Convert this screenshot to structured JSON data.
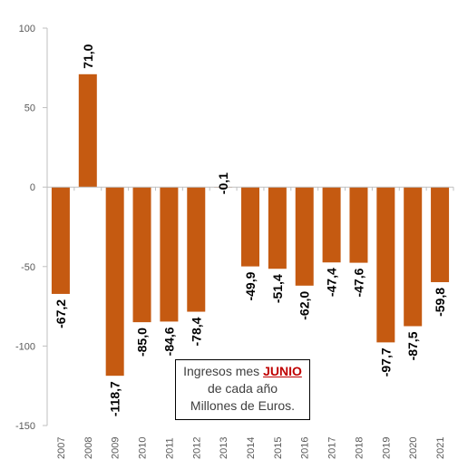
{
  "chart_data": {
    "type": "bar",
    "categories": [
      "2007",
      "2008",
      "2009",
      "2010",
      "2011",
      "2012",
      "2013",
      "2014",
      "2015",
      "2016",
      "2017",
      "2018",
      "2019",
      "2020",
      "2021"
    ],
    "values": [
      -67.2,
      71.0,
      -118.7,
      -85.0,
      -84.6,
      -78.4,
      -0.1,
      -49.9,
      -51.4,
      -62.0,
      -47.4,
      -47.6,
      -97.7,
      -87.5,
      -59.8
    ],
    "data_labels": [
      "-67,2",
      "71,0",
      "-118,7",
      "-85,0",
      "-84,6",
      "-78,4",
      "-0,1",
      "-49,9",
      "-51,4",
      "-62,0",
      "-47,4",
      "-47,6",
      "-97,7",
      "-87,5",
      "-59,8"
    ],
    "ylim": [
      -150,
      100
    ],
    "y_ticks": [
      100,
      50,
      0,
      -50,
      -100,
      -150
    ],
    "grid": false,
    "bar_color": "#c55a11",
    "title": "",
    "xlabel": "",
    "ylabel": ""
  },
  "annotation": {
    "line1_pre": "Ingresos mes ",
    "line1_highlight": "JUNIO",
    "line2": "de cada año",
    "line3": "Millones de Euros."
  },
  "colors": {
    "highlight": "#c00000",
    "text": "#404040"
  }
}
